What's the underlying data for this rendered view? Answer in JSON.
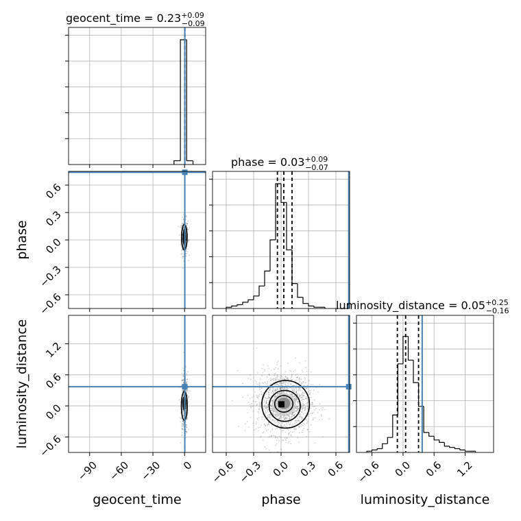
{
  "chart_data": {
    "type": "corner",
    "truth_color": "#4682b4",
    "parameters": [
      {
        "key": "geocent_time",
        "label": "geocent_time",
        "median": "0.23",
        "plus": "+0.09",
        "minus": "−0.09",
        "truth": 0.23
      },
      {
        "key": "phase",
        "label": "phase",
        "median": "0.03",
        "plus": "+0.09",
        "minus": "−0.07",
        "truth": 0.74
      },
      {
        "key": "luminosity_distance",
        "label": "luminosity_distance",
        "median": "0.05",
        "plus": "+0.25",
        "minus": "−0.16",
        "truth": 0.37
      }
    ],
    "axes": {
      "geocent_time": {
        "range": [
          -110,
          20
        ],
        "ticks": [
          "−90",
          "−60",
          "−30",
          "0"
        ],
        "tick_values": [
          -90,
          -60,
          -30,
          0
        ]
      },
      "phase": {
        "range": [
          -0.75,
          0.75
        ],
        "ticks": [
          "−0.6",
          "−0.3",
          "0.0",
          "0.3",
          "0.6"
        ],
        "tick_values": [
          -0.6,
          -0.3,
          0.0,
          0.3,
          0.6
        ]
      },
      "luminosity_distance": {
        "range": [
          -0.9,
          1.75
        ],
        "ticks": [
          "−0.6",
          "0.0",
          "0.6",
          "1.2"
        ],
        "tick_values": [
          -0.6,
          0.0,
          0.6,
          1.2
        ]
      }
    },
    "histograms": {
      "geocent_time": {
        "bin_edges": [
          -10,
          -4,
          2,
          8
        ],
        "counts": [
          0.03,
          1.0,
          0.03
        ],
        "quantiles": [
          0.14,
          0.23,
          0.32
        ]
      },
      "phase": {
        "bin_edges": [
          -0.6,
          -0.54,
          -0.48,
          -0.42,
          -0.36,
          -0.3,
          -0.24,
          -0.18,
          -0.12,
          -0.06,
          0.0,
          0.06,
          0.12,
          0.18,
          0.24,
          0.3,
          0.36,
          0.42,
          0.48
        ],
        "counts": [
          0.01,
          0.02,
          0.03,
          0.05,
          0.07,
          0.1,
          0.18,
          0.3,
          0.55,
          1.0,
          0.85,
          0.47,
          0.2,
          0.09,
          0.04,
          0.02,
          0.01,
          0.01
        ],
        "quantiles": [
          -0.04,
          0.03,
          0.12
        ]
      },
      "luminosity_distance": {
        "bin_edges": [
          -0.7,
          -0.6,
          -0.5,
          -0.4,
          -0.3,
          -0.2,
          -0.1,
          0.0,
          0.1,
          0.2,
          0.3,
          0.4,
          0.5,
          0.6,
          0.7,
          0.8,
          0.9,
          1.0,
          1.1,
          1.2,
          1.3,
          1.4
        ],
        "counts": [
          0.01,
          0.02,
          0.03,
          0.07,
          0.12,
          0.3,
          0.71,
          0.93,
          0.74,
          0.56,
          0.37,
          0.16,
          0.13,
          0.1,
          0.08,
          0.05,
          0.04,
          0.03,
          0.02,
          0.01,
          0.01
        ],
        "quantiles": [
          -0.11,
          0.05,
          0.3
        ]
      }
    },
    "grid": true
  }
}
